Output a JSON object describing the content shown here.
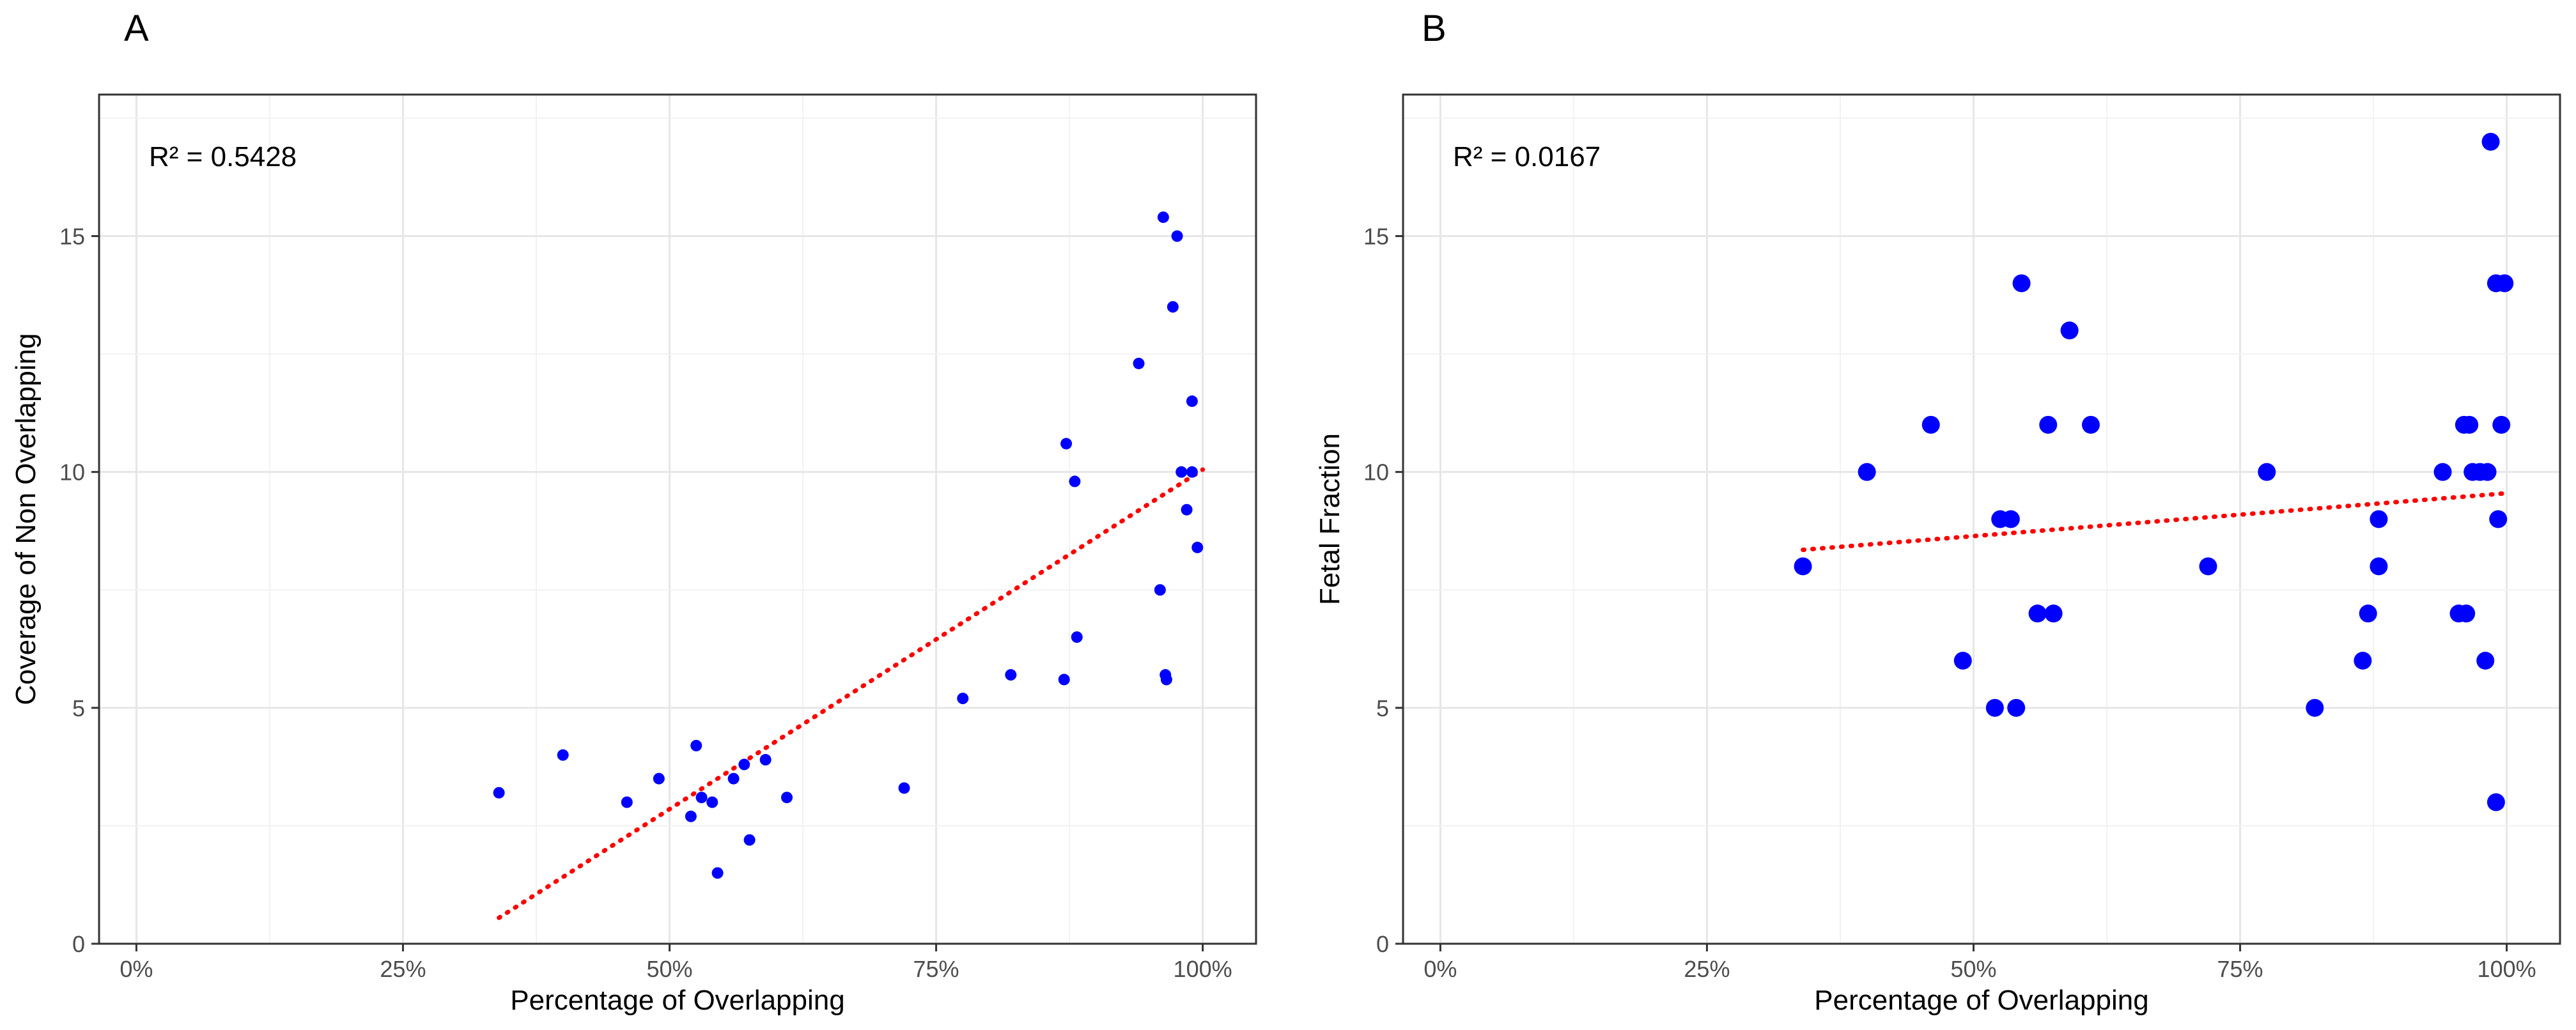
{
  "chart_data": [
    {
      "type": "scatter",
      "panel_label": "A",
      "title": "",
      "xlabel": "Percentage of Overlapping",
      "ylabel": "Coverage of Non Overlapping",
      "xlim": [
        -0.035,
        1.05
      ],
      "ylim": [
        0,
        18
      ],
      "x_ticks": [
        0,
        0.25,
        0.5,
        0.75,
        1.0
      ],
      "x_tick_labels": [
        "0%",
        "25%",
        "50%",
        "75%",
        "100%"
      ],
      "y_ticks": [
        0,
        5,
        10,
        15
      ],
      "y_tick_labels": [
        "0",
        "5",
        "10",
        "15"
      ],
      "grid": true,
      "annotation": "R² = 0.5428",
      "point_color": "#0000ff",
      "trend_color": "#ff0000",
      "trendline": {
        "x": [
          0.34,
          1.0
        ],
        "y": [
          0.55,
          10.05
        ]
      },
      "points": [
        {
          "x": 0.34,
          "y": 3.2
        },
        {
          "x": 0.4,
          "y": 4.0
        },
        {
          "x": 0.46,
          "y": 3.0
        },
        {
          "x": 0.49,
          "y": 3.5
        },
        {
          "x": 0.52,
          "y": 2.7
        },
        {
          "x": 0.525,
          "y": 4.2
        },
        {
          "x": 0.53,
          "y": 3.1
        },
        {
          "x": 0.54,
          "y": 3.0
        },
        {
          "x": 0.545,
          "y": 1.5
        },
        {
          "x": 0.56,
          "y": 3.5
        },
        {
          "x": 0.57,
          "y": 3.8
        },
        {
          "x": 0.575,
          "y": 2.2
        },
        {
          "x": 0.59,
          "y": 3.9
        },
        {
          "x": 0.61,
          "y": 3.1
        },
        {
          "x": 0.72,
          "y": 3.3
        },
        {
          "x": 0.775,
          "y": 5.2
        },
        {
          "x": 0.82,
          "y": 5.7
        },
        {
          "x": 0.87,
          "y": 5.6
        },
        {
          "x": 0.872,
          "y": 10.6
        },
        {
          "x": 0.88,
          "y": 9.8
        },
        {
          "x": 0.882,
          "y": 6.5
        },
        {
          "x": 0.94,
          "y": 12.3
        },
        {
          "x": 0.96,
          "y": 7.5
        },
        {
          "x": 0.963,
          "y": 15.4
        },
        {
          "x": 0.965,
          "y": 5.7
        },
        {
          "x": 0.966,
          "y": 5.6
        },
        {
          "x": 0.972,
          "y": 13.5
        },
        {
          "x": 0.976,
          "y": 15.0
        },
        {
          "x": 0.98,
          "y": 10.0
        },
        {
          "x": 0.985,
          "y": 9.2
        },
        {
          "x": 0.99,
          "y": 11.5
        },
        {
          "x": 0.99,
          "y": 10.0
        },
        {
          "x": 0.995,
          "y": 8.4
        }
      ]
    },
    {
      "type": "scatter",
      "panel_label": "B",
      "title": "",
      "xlabel": "Percentage of Overlapping",
      "ylabel": "Fetal Fraction",
      "xlim": [
        -0.035,
        1.05
      ],
      "ylim": [
        0,
        18
      ],
      "x_ticks": [
        0,
        0.25,
        0.5,
        0.75,
        1.0
      ],
      "x_tick_labels": [
        "0%",
        "25%",
        "50%",
        "75%",
        "100%"
      ],
      "y_ticks": [
        0,
        5,
        10,
        15
      ],
      "y_tick_labels": [
        "0",
        "5",
        "10",
        "15"
      ],
      "grid": true,
      "annotation": "R² = 0.0167",
      "point_color": "#0000ff",
      "trend_color": "#ff0000",
      "trendline": {
        "x": [
          0.34,
          1.0
        ],
        "y": [
          8.35,
          9.55
        ]
      },
      "points": [
        {
          "x": 0.34,
          "y": 8
        },
        {
          "x": 0.4,
          "y": 10
        },
        {
          "x": 0.46,
          "y": 11
        },
        {
          "x": 0.49,
          "y": 6
        },
        {
          "x": 0.52,
          "y": 5
        },
        {
          "x": 0.525,
          "y": 9
        },
        {
          "x": 0.535,
          "y": 9
        },
        {
          "x": 0.54,
          "y": 5
        },
        {
          "x": 0.545,
          "y": 14
        },
        {
          "x": 0.56,
          "y": 7
        },
        {
          "x": 0.57,
          "y": 11
        },
        {
          "x": 0.575,
          "y": 7
        },
        {
          "x": 0.59,
          "y": 13
        },
        {
          "x": 0.61,
          "y": 11
        },
        {
          "x": 0.72,
          "y": 8
        },
        {
          "x": 0.775,
          "y": 10
        },
        {
          "x": 0.82,
          "y": 5
        },
        {
          "x": 0.865,
          "y": 6
        },
        {
          "x": 0.87,
          "y": 7
        },
        {
          "x": 0.88,
          "y": 9
        },
        {
          "x": 0.88,
          "y": 8
        },
        {
          "x": 0.94,
          "y": 10
        },
        {
          "x": 0.955,
          "y": 7
        },
        {
          "x": 0.96,
          "y": 11
        },
        {
          "x": 0.962,
          "y": 7
        },
        {
          "x": 0.965,
          "y": 11
        },
        {
          "x": 0.968,
          "y": 10
        },
        {
          "x": 0.975,
          "y": 10
        },
        {
          "x": 0.98,
          "y": 6
        },
        {
          "x": 0.982,
          "y": 10
        },
        {
          "x": 0.985,
          "y": 17
        },
        {
          "x": 0.99,
          "y": 14
        },
        {
          "x": 0.99,
          "y": 3
        },
        {
          "x": 0.992,
          "y": 9
        },
        {
          "x": 0.995,
          "y": 11
        },
        {
          "x": 0.998,
          "y": 14
        }
      ]
    }
  ]
}
